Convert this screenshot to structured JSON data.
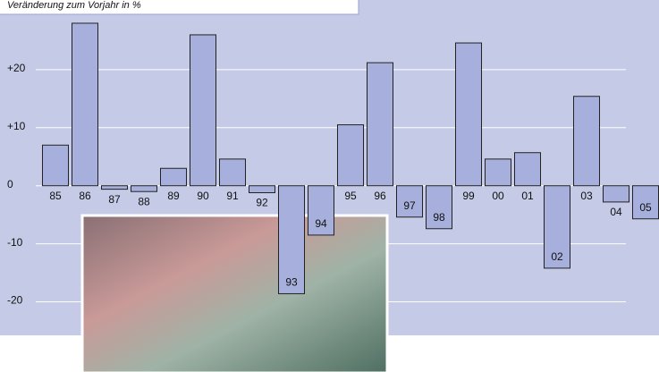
{
  "chart_data": {
    "type": "bar",
    "subtitle": "Veränderung zum Vorjahr in %",
    "categories": [
      "85",
      "86",
      "87",
      "88",
      "89",
      "90",
      "91",
      "92",
      "93",
      "94",
      "95",
      "96",
      "97",
      "98",
      "99",
      "00",
      "01",
      "02",
      "03",
      "04",
      "05"
    ],
    "values": [
      7,
      28,
      -0.6,
      -1,
      3,
      26,
      4.6,
      -1.2,
      -18.6,
      -8.5,
      10.5,
      21.2,
      -5.4,
      -7.4,
      24.6,
      4.6,
      5.7,
      -14.2,
      15.4,
      -2.8,
      -5.7
    ],
    "color": "#a7b0dc",
    "ylim": [
      -25,
      32
    ],
    "yticks": [
      -20,
      -10,
      0,
      {
        "value": 10,
        "label": "+10"
      },
      {
        "value": 20,
        "label": "+20"
      }
    ],
    "grid": true
  }
}
